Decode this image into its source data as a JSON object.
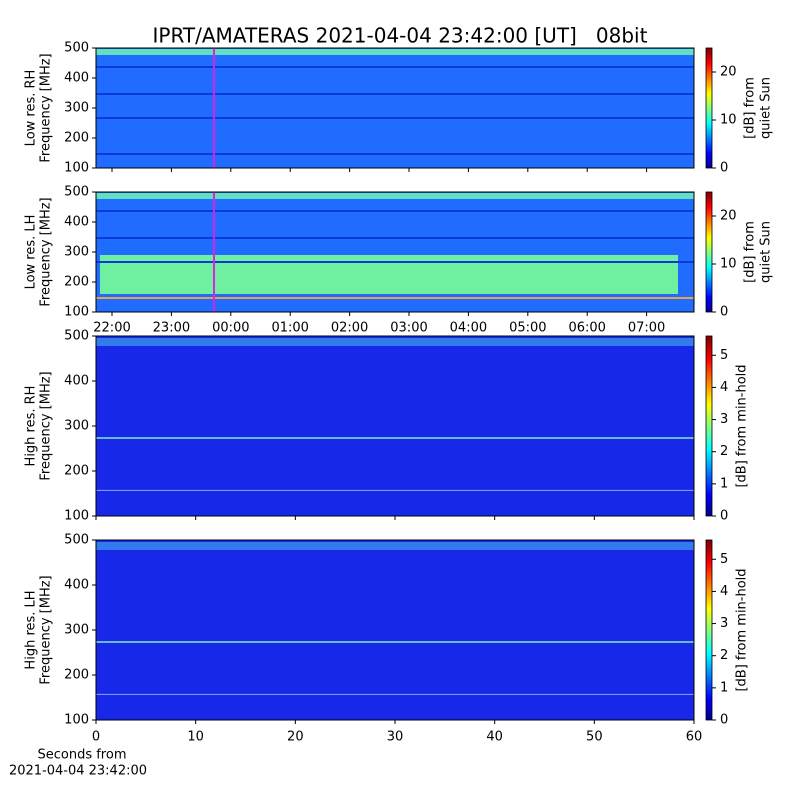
{
  "title": "IPRT/AMATERAS 2021-04-04 23:42:00 [UT]   08bit",
  "chart_data": [
    {
      "type": "heatmap",
      "ylabel": [
        "Low res. RH",
        "Frequency [MHz]"
      ],
      "ylim": [
        100,
        500
      ],
      "yticks": [
        100,
        200,
        300,
        400,
        500
      ],
      "colorbar": {
        "label": [
          "[dB] from",
          "quiet Sun"
        ],
        "lim": [
          0,
          25
        ],
        "ticks": [
          0,
          10,
          20
        ]
      }
    },
    {
      "type": "heatmap",
      "ylabel": [
        "Low res. LH",
        "Frequency [MHz]"
      ],
      "ylim": [
        100,
        500
      ],
      "yticks": [
        100,
        200,
        300,
        400,
        500
      ],
      "xtick_labels": [
        "22:00",
        "23:00",
        "00:00",
        "01:00",
        "02:00",
        "03:00",
        "04:00",
        "05:00",
        "06:00",
        "07:00"
      ],
      "colorbar": {
        "label": [
          "[dB] from",
          "quiet Sun"
        ],
        "lim": [
          0,
          25
        ],
        "ticks": [
          0,
          10,
          20
        ]
      }
    },
    {
      "type": "heatmap",
      "ylabel": [
        "High res. RH",
        "Frequency [MHz]"
      ],
      "ylim": [
        100,
        500
      ],
      "yticks": [
        100,
        200,
        300,
        400,
        500
      ],
      "colorbar": {
        "label": [
          "[dB] from min-hold"
        ],
        "lim": [
          0,
          5.6
        ],
        "ticks": [
          0,
          1,
          2,
          3,
          4,
          5
        ]
      }
    },
    {
      "type": "heatmap",
      "ylabel": [
        "High res. LH",
        "Frequency [MHz]"
      ],
      "ylim": [
        100,
        500
      ],
      "yticks": [
        100,
        200,
        300,
        400,
        500
      ],
      "xlim": [
        0,
        60
      ],
      "xticks": [
        0,
        10,
        20,
        30,
        40,
        50,
        60
      ],
      "xlabel": [
        "Seconds from",
        "2021-04-04 23:42:00"
      ],
      "colorbar": {
        "label": [
          "[dB] from min-hold"
        ],
        "lim": [
          0,
          5.6
        ],
        "ticks": [
          0,
          1,
          2,
          3,
          4,
          5
        ]
      }
    }
  ]
}
